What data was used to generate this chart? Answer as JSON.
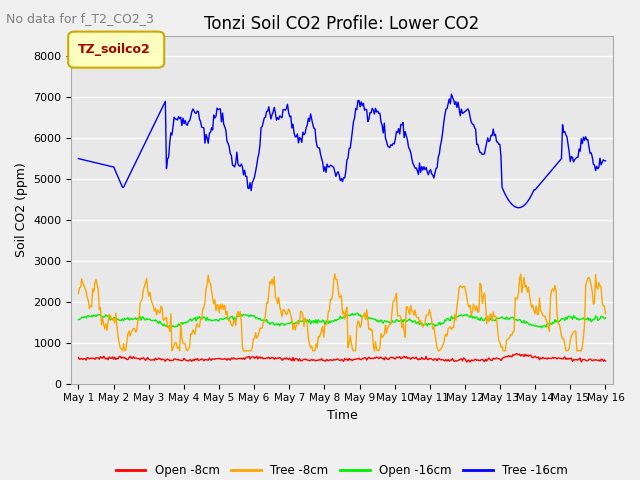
{
  "title": "Tonzi Soil CO2 Profile: Lower CO2",
  "subtitle": "No data for f_T2_CO2_3",
  "ylabel": "Soil CO2 (ppm)",
  "xlabel": "Time",
  "ylim": [
    0,
    8500
  ],
  "yticks": [
    0,
    1000,
    2000,
    3000,
    4000,
    5000,
    6000,
    7000,
    8000
  ],
  "plot_bg": "#e8e8e8",
  "fig_bg": "#f0f0f0",
  "legend_label": "TZ_soilco2",
  "legend_box_color": "#ffffc0",
  "legend_box_edge": "#ccaa00",
  "legend_text_color": "#aa0000",
  "series": {
    "open_8cm": {
      "label": "Open -8cm",
      "color": "#ff0000"
    },
    "tree_8cm": {
      "label": "Tree -8cm",
      "color": "#ffa500"
    },
    "open_16cm": {
      "label": "Open -16cm",
      "color": "#00ee00"
    },
    "tree_16cm": {
      "label": "Tree -16cm",
      "color": "#0000ff"
    }
  },
  "xtick_labels": [
    "May 1",
    "May 2",
    "May 3",
    "May 4",
    "May 5",
    "May 6",
    "May 7",
    "May 8",
    "May 9",
    "May 10",
    "May 11",
    "May 12",
    "May 13",
    "May 14",
    "May 15",
    "May 16"
  ],
  "n_points": 480,
  "subtitle_color": "#808080",
  "subtitle_fontsize": 9,
  "title_fontsize": 12,
  "axis_label_fontsize": 9,
  "tick_fontsize": 8
}
